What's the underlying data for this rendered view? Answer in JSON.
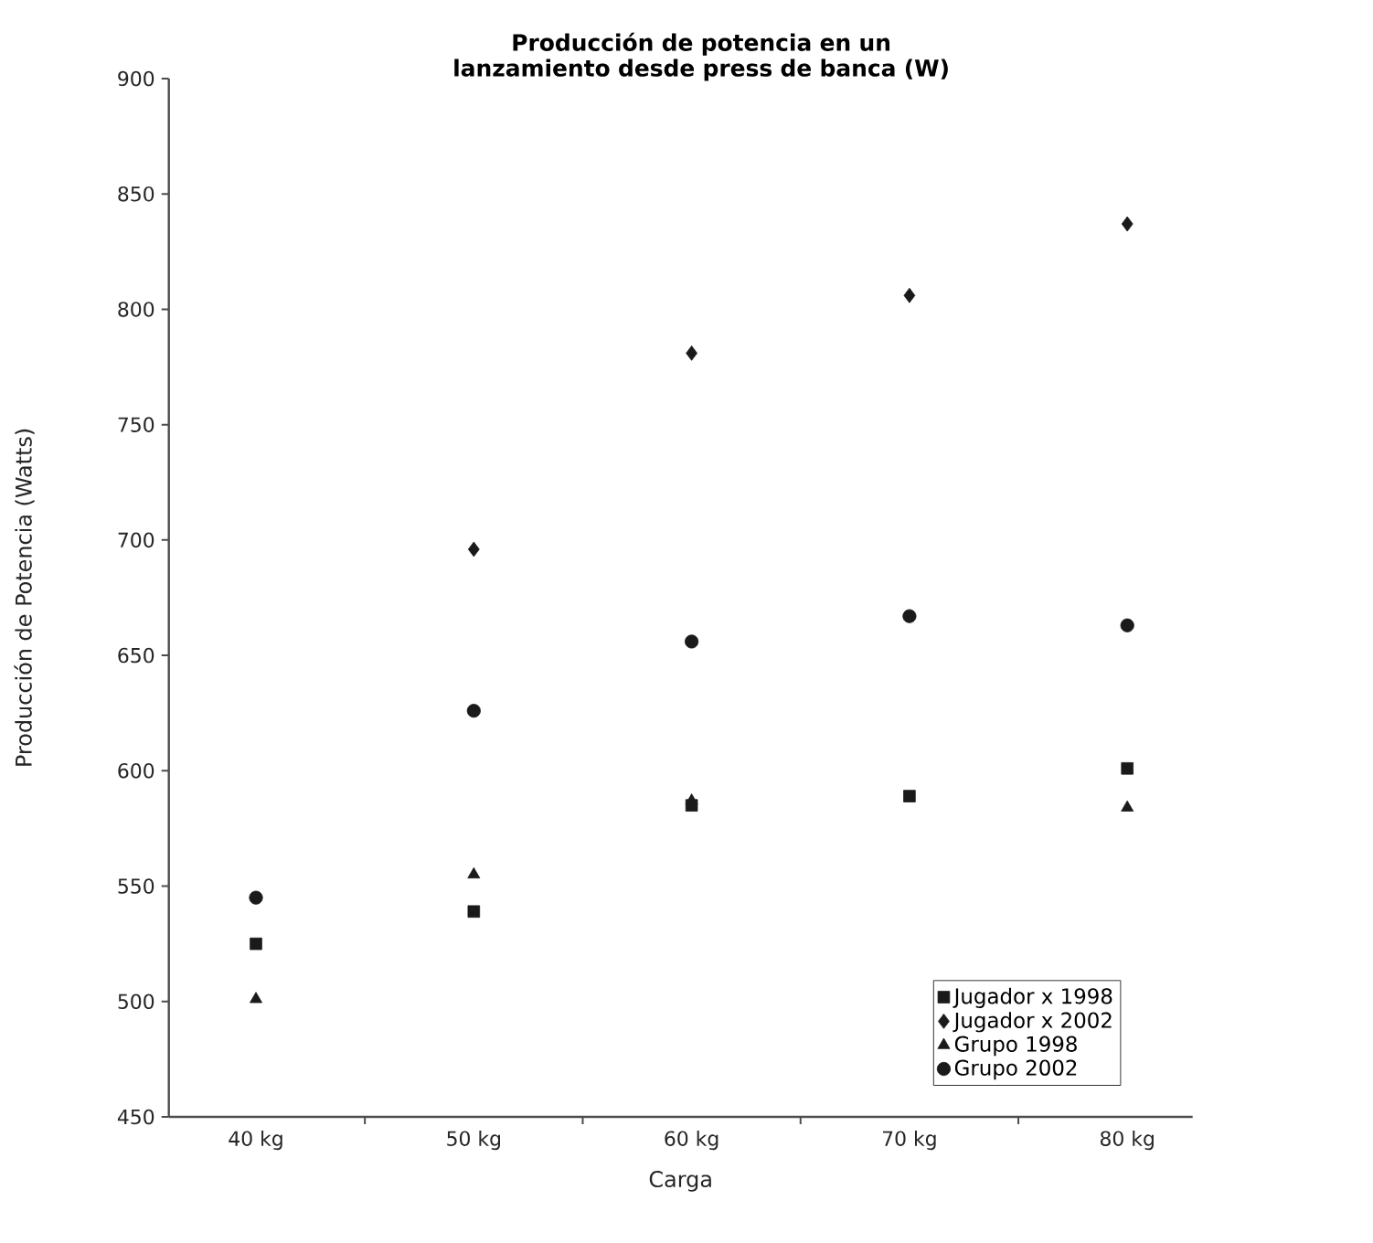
{
  "chart_data": {
    "type": "scatter",
    "title": "Producción de potencia en un lanzamiento desde press de banca (W)",
    "xlabel": "Carga",
    "ylabel": "Producción de Potencia (Watts)",
    "categories": [
      "40 kg",
      "50 kg",
      "60 kg",
      "70 kg",
      "80 kg"
    ],
    "series": [
      {
        "name": "Jugador x 1998",
        "color": "#1a1a1a",
        "marker": "square",
        "values": [
          525,
          539,
          585,
          589,
          601
        ]
      },
      {
        "name": "Jugador x 2002",
        "color": "#1a1a1a",
        "marker": "diamond",
        "values": [
          null,
          696,
          781,
          806,
          837
        ]
      },
      {
        "name": "Grupo 1998",
        "color": "#1a1a1a",
        "marker": "triangle",
        "values": [
          501,
          555,
          587,
          null,
          584
        ]
      },
      {
        "name": "Grupo 2002",
        "color": "#1a1a1a",
        "marker": "circle",
        "values": [
          545,
          626,
          656,
          667,
          663
        ]
      }
    ],
    "ylim": [
      450,
      900
    ],
    "yticks": [
      450,
      500,
      550,
      600,
      650,
      700,
      750,
      800,
      850,
      900
    ],
    "grid": false,
    "legend": "bottom right"
  }
}
